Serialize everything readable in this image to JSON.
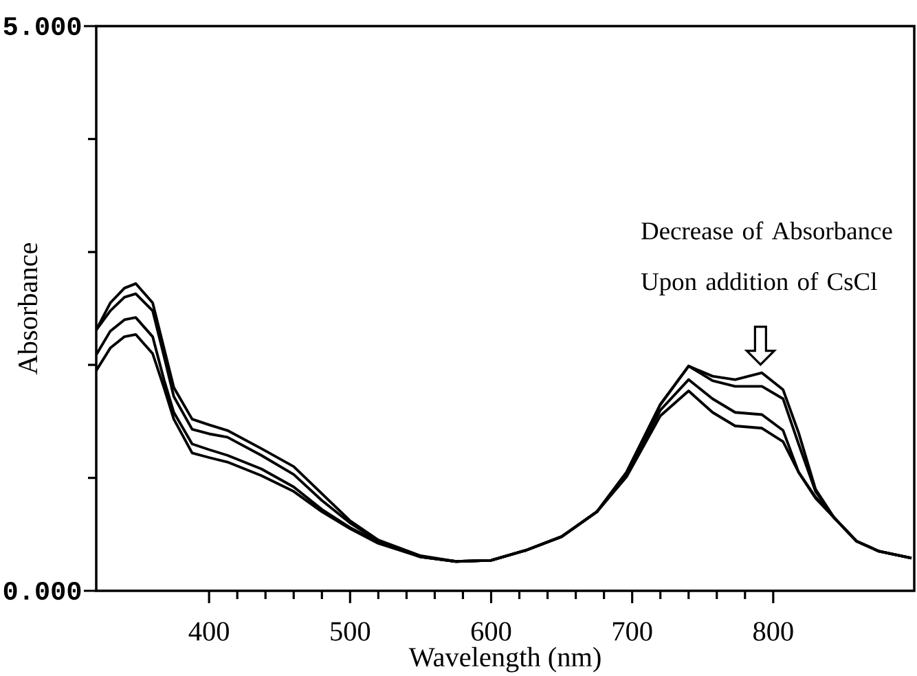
{
  "chart_data": {
    "type": "line",
    "xlabel": "Wavelength (nm)",
    "ylabel": "Absorbance",
    "x": [
      320,
      330,
      340,
      348,
      360,
      368,
      375,
      388,
      400,
      413,
      437,
      460,
      480,
      500,
      520,
      550,
      575,
      600,
      625,
      650,
      675,
      696,
      720,
      740,
      757,
      773,
      792,
      807,
      818,
      830,
      843,
      859,
      875,
      898
    ],
    "series": [
      {
        "color": "#000000",
        "values": [
          2.31,
          2.55,
          2.68,
          2.72,
          2.55,
          2.15,
          1.8,
          1.52,
          1.47,
          1.42,
          1.26,
          1.1,
          0.86,
          0.62,
          0.45,
          0.31,
          0.26,
          0.27,
          0.36,
          0.48,
          0.7,
          1.05,
          1.65,
          1.99,
          1.9,
          1.87,
          1.93,
          1.78,
          1.4,
          0.9,
          0.65,
          0.44,
          0.35,
          0.29
        ]
      },
      {
        "color": "#000000",
        "values": [
          2.31,
          2.48,
          2.6,
          2.63,
          2.48,
          2.08,
          1.72,
          1.43,
          1.39,
          1.36,
          1.2,
          1.03,
          0.8,
          0.6,
          0.44,
          0.3,
          0.26,
          0.27,
          0.36,
          0.48,
          0.7,
          1.05,
          1.65,
          1.99,
          1.86,
          1.81,
          1.81,
          1.7,
          1.3,
          0.88,
          0.65,
          0.44,
          0.35,
          0.29
        ]
      },
      {
        "color": "#000000",
        "values": [
          2.09,
          2.3,
          2.4,
          2.42,
          2.25,
          1.87,
          1.58,
          1.3,
          1.25,
          1.2,
          1.08,
          0.92,
          0.72,
          0.56,
          0.43,
          0.3,
          0.26,
          0.27,
          0.36,
          0.48,
          0.7,
          1.03,
          1.6,
          1.87,
          1.7,
          1.58,
          1.56,
          1.42,
          1.05,
          0.83,
          0.65,
          0.44,
          0.35,
          0.29
        ]
      },
      {
        "color": "#000000",
        "values": [
          1.95,
          2.15,
          2.25,
          2.27,
          2.1,
          1.8,
          1.52,
          1.22,
          1.18,
          1.14,
          1.02,
          0.88,
          0.7,
          0.55,
          0.42,
          0.3,
          0.26,
          0.27,
          0.36,
          0.48,
          0.7,
          1.01,
          1.55,
          1.77,
          1.58,
          1.46,
          1.44,
          1.32,
          1.05,
          0.82,
          0.65,
          0.44,
          0.35,
          0.29
        ]
      }
    ],
    "xlim": [
      320,
      900
    ],
    "ylim": [
      0,
      5
    ],
    "xticks": [
      400,
      500,
      600,
      700,
      800
    ],
    "yticks": [
      {
        "value": 0,
        "label": "0.000"
      },
      {
        "value": 5,
        "label": "5.000"
      }
    ],
    "annotations": [
      "Decrease of Absorbance Upon addition of CsCl"
    ]
  }
}
